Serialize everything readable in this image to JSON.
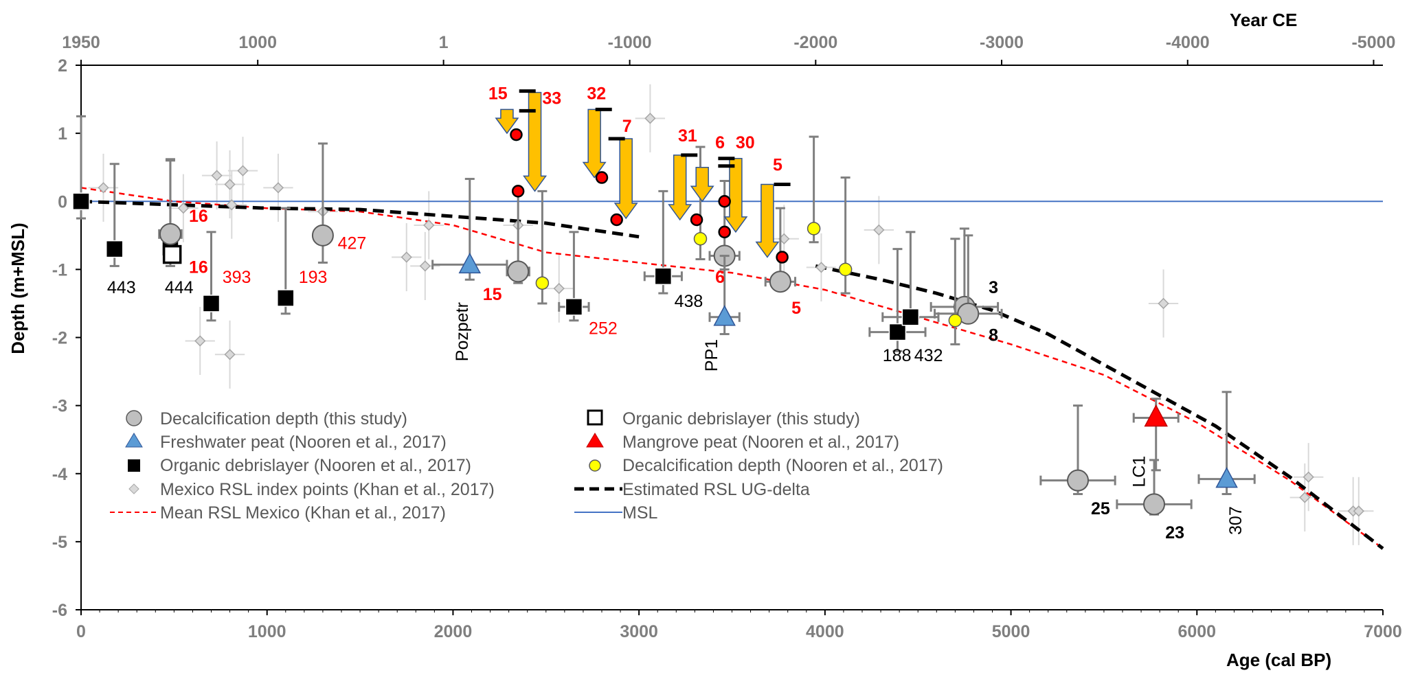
{
  "chart_data": {
    "type": "scatter",
    "xlabel": "Age (cal BP)",
    "ylabel": "Depth (m+MSL)",
    "x2label": "Year CE",
    "xlim": [
      0,
      7000
    ],
    "ylim": [
      -6,
      2
    ],
    "xticks": [
      "0",
      "1000",
      "2000",
      "3000",
      "4000",
      "5000",
      "6000",
      "7000"
    ],
    "yticks": [
      "2",
      "1",
      "0",
      "-1",
      "-2",
      "-3",
      "-4",
      "-5",
      "-6"
    ],
    "top_ticks": [
      "1950",
      "1000",
      "1",
      "-1000",
      "-2000",
      "-3000",
      "-4000",
      "-5000"
    ],
    "colors": {
      "grey_marker": "#bfbfbf",
      "blue": "#5b9bd5",
      "red": "#ff0000",
      "yellow": "#ffff00",
      "arrow": "#ffc000",
      "msl": "#4472c4",
      "rsl_mean": "#ff0000",
      "estimated": "#000000",
      "index": "#a6a6a6",
      "errbar": "#7f7f7f"
    },
    "legend": [
      {
        "marker": "grey-circle",
        "text": "Decalcification depth (this study)"
      },
      {
        "marker": "open-square",
        "text": "Organic debrislayer (this study)"
      },
      {
        "marker": "blue-triangle",
        "text": "Freshwater peat (Nooren et al., 2017)"
      },
      {
        "marker": "red-triangle",
        "text": "Mangrove peat (Nooren et al., 2017)"
      },
      {
        "marker": "black-square",
        "text": "Organic debrislayer (Nooren et al., 2017)"
      },
      {
        "marker": "yellow-circle",
        "text": "Decalcification depth (Nooren et al., 2017)"
      },
      {
        "marker": "diamond",
        "text": "Mexico RSL index points (Khan et al., 2017)"
      },
      {
        "marker": "black-dash",
        "text": "Estimated RSL UG-delta"
      },
      {
        "marker": "red-dash",
        "text": "Mean RSL Mexico (Khan et al., 2017)"
      },
      {
        "marker": "blue-line",
        "text": "MSL"
      }
    ],
    "series": {
      "msl": {
        "name": "MSL",
        "y": 0
      },
      "mean_rsl_mexico": [
        [
          0,
          0.2
        ],
        [
          500,
          0
        ],
        [
          1000,
          -0.1
        ],
        [
          1500,
          -0.15
        ],
        [
          2000,
          -0.35
        ],
        [
          2500,
          -0.75
        ],
        [
          3000,
          -0.9
        ],
        [
          3500,
          -1.05
        ],
        [
          4000,
          -1.3
        ],
        [
          4500,
          -1.7
        ],
        [
          5000,
          -2.1
        ],
        [
          5500,
          -2.55
        ],
        [
          6000,
          -3.25
        ],
        [
          6500,
          -4.1
        ],
        [
          7000,
          -5.1
        ]
      ],
      "estimated_rsl": {
        "segment1": [
          [
            0,
            0
          ],
          [
            500,
            -0.05
          ],
          [
            1000,
            -0.1
          ],
          [
            1500,
            -0.12
          ],
          [
            2000,
            -0.22
          ],
          [
            2500,
            -0.32
          ],
          [
            3000,
            -0.52
          ]
        ],
        "segment2": [
          [
            3950,
            -0.95
          ],
          [
            4300,
            -1.15
          ],
          [
            4600,
            -1.35
          ],
          [
            4900,
            -1.6
          ],
          [
            5200,
            -1.95
          ],
          [
            5500,
            -2.4
          ],
          [
            5800,
            -2.85
          ],
          [
            6100,
            -3.3
          ],
          [
            6500,
            -4.05
          ],
          [
            7000,
            -5.1
          ]
        ]
      },
      "decalc_this_study": [
        {
          "x": 480,
          "y": -0.48,
          "xerr": 60,
          "ylo": -0.6,
          "yhi": 0.62
        },
        {
          "x": 1300,
          "y": -0.5,
          "xerr": 0,
          "ylo": -0.9,
          "yhi": 0.85
        },
        {
          "x": 2350,
          "y": -1.03,
          "xerr": 60,
          "ylo": -1.2,
          "yhi": 0.15
        },
        {
          "x": 3460,
          "y": -0.8,
          "xerr": 80,
          "ylo": -1.0,
          "yhi": 0.3
        },
        {
          "x": 3760,
          "y": -1.18,
          "xerr": 80,
          "ylo": -1.3,
          "yhi": -0.1
        },
        {
          "x": 4750,
          "y": -1.55,
          "xerr": 180,
          "ylo": -1.6,
          "yhi": -0.4
        },
        {
          "x": 4770,
          "y": -1.65,
          "xerr": 180,
          "ylo": -1.7,
          "yhi": -0.5
        },
        {
          "x": 5360,
          "y": -4.1,
          "xerr": 200,
          "ylo": -4.3,
          "yhi": -3.0
        },
        {
          "x": 5770,
          "y": -4.45,
          "xerr": 200,
          "ylo": -4.6,
          "yhi": -3.8
        }
      ],
      "organic_this_study": [
        {
          "x": 490,
          "y": -0.78,
          "yhi": -0.6
        }
      ],
      "freshwater_peat": [
        {
          "x": 2090,
          "y": -0.93,
          "xerr": 200,
          "ylo": -1.15,
          "yhi": 0.33
        },
        {
          "x": 3460,
          "y": -1.7,
          "xerr": 80,
          "ylo": -1.95,
          "yhi": -0.8
        },
        {
          "x": 6160,
          "y": -4.08,
          "xerr": 150,
          "ylo": -4.3,
          "yhi": -2.8
        }
      ],
      "mangrove_peat": [
        {
          "x": 5780,
          "y": -3.18,
          "xerr": 120,
          "ylo": -3.95,
          "yhi": -2.9
        }
      ],
      "organic_nooren": [
        {
          "x": 0,
          "y": 0,
          "ylo": -0.25,
          "yhi": 1.25
        },
        {
          "x": 180,
          "y": -0.7,
          "ylo": -0.95,
          "yhi": 0.55
        },
        {
          "x": 480,
          "y": -0.68,
          "ylo": -0.95,
          "yhi": 0.6
        },
        {
          "x": 700,
          "y": -1.5,
          "xerr": 40,
          "ylo": -1.75,
          "yhi": -0.45
        },
        {
          "x": 1100,
          "y": -1.42,
          "ylo": -1.65,
          "yhi": -0.1
        },
        {
          "x": 2650,
          "y": -1.55,
          "xerr": 80,
          "ylo": -1.75,
          "yhi": -0.45
        },
        {
          "x": 3130,
          "y": -1.1,
          "xerr": 100,
          "ylo": -1.35,
          "yhi": 0.15
        },
        {
          "x": 4390,
          "y": -1.92,
          "xerr": 150,
          "ylo": -2.2,
          "yhi": -0.7
        },
        {
          "x": 4460,
          "y": -1.7,
          "xerr": 150,
          "ylo": -1.8,
          "yhi": -0.45
        }
      ],
      "decalc_nooren": [
        {
          "x": 2480,
          "y": -1.2,
          "ylo": -1.5,
          "yhi": 0.15
        },
        {
          "x": 3330,
          "y": -0.55,
          "ylo": -0.85,
          "yhi": 0.8
        },
        {
          "x": 3940,
          "y": -0.4,
          "ylo": -0.6,
          "yhi": 0.95
        },
        {
          "x": 4110,
          "y": -1.0,
          "ylo": -1.35,
          "yhi": 0.35
        },
        {
          "x": 4700,
          "y": -1.75,
          "ylo": -2.1,
          "yhi": -0.55
        }
      ],
      "index_points": [
        {
          "x": 120,
          "y": 0.2
        },
        {
          "x": 550,
          "y": -0.1
        },
        {
          "x": 730,
          "y": 0.38
        },
        {
          "x": 800,
          "y": 0.25
        },
        {
          "x": 870,
          "y": 0.45
        },
        {
          "x": 810,
          "y": -0.05
        },
        {
          "x": 1060,
          "y": 0.2
        },
        {
          "x": 640,
          "y": -2.05
        },
        {
          "x": 800,
          "y": -2.25
        },
        {
          "x": 1300,
          "y": -0.15
        },
        {
          "x": 1850,
          "y": -0.95
        },
        {
          "x": 1750,
          "y": -0.82
        },
        {
          "x": 1870,
          "y": -0.35
        },
        {
          "x": 2350,
          "y": -0.35
        },
        {
          "x": 2570,
          "y": -1.28
        },
        {
          "x": 3060,
          "y": 1.22
        },
        {
          "x": 3780,
          "y": -0.55
        },
        {
          "x": 3980,
          "y": -0.97
        },
        {
          "x": 4290,
          "y": -0.42
        },
        {
          "x": 5820,
          "y": -1.5
        },
        {
          "x": 6600,
          "y": -4.05
        },
        {
          "x": 6580,
          "y": -4.35
        },
        {
          "x": 6840,
          "y": -4.55
        },
        {
          "x": 6870,
          "y": -4.55
        }
      ],
      "red_dots": [
        {
          "x": 2340,
          "y": 0.98
        },
        {
          "x": 2350,
          "y": 0.15
        },
        {
          "x": 2800,
          "y": 0.35
        },
        {
          "x": 2880,
          "y": -0.27
        },
        {
          "x": 3310,
          "y": -0.27
        },
        {
          "x": 3460,
          "y": 0.0
        },
        {
          "x": 3460,
          "y": -0.45
        },
        {
          "x": 3770,
          "y": -0.82
        }
      ],
      "arrows": [
        {
          "x": 2290,
          "y_from": 1.35,
          "y_to": 1.0
        },
        {
          "x": 2440,
          "y_from": 1.6,
          "y_to": 0.15
        },
        {
          "x": 2760,
          "y_from": 1.35,
          "y_to": 0.35
        },
        {
          "x": 2930,
          "y_from": 0.92,
          "y_to": -0.25
        },
        {
          "x": 3220,
          "y_from": 0.68,
          "y_to": -0.27
        },
        {
          "x": 3340,
          "y_from": 0.5,
          "y_to": 0.0
        },
        {
          "x": 3520,
          "y_from": 0.63,
          "y_to": -0.45
        },
        {
          "x": 3690,
          "y_from": 0.25,
          "y_to": -0.82
        }
      ],
      "bars": [
        {
          "x": 2400,
          "y": 1.62
        },
        {
          "x": 2400,
          "y": 1.33
        },
        {
          "x": 2810,
          "y": 1.35
        },
        {
          "x": 2880,
          "y": 0.92
        },
        {
          "x": 3270,
          "y": 0.68
        },
        {
          "x": 3470,
          "y": 0.63
        },
        {
          "x": 3470,
          "y": 0.52
        },
        {
          "x": 3770,
          "y": 0.25
        }
      ]
    },
    "labels": [
      {
        "text": "443",
        "x": 140,
        "y": -1.35,
        "style": "blk"
      },
      {
        "text": "444",
        "x": 450,
        "y": -1.35,
        "style": "blk"
      },
      {
        "text": "16",
        "x": 580,
        "y": -0.3,
        "style": "redb"
      },
      {
        "text": "16",
        "x": 580,
        "y": -1.05,
        "style": "redb"
      },
      {
        "text": "393",
        "x": 760,
        "y": -1.2,
        "style": "red"
      },
      {
        "text": "193",
        "x": 1170,
        "y": -1.2,
        "style": "red"
      },
      {
        "text": "427",
        "x": 1380,
        "y": -0.7,
        "style": "red"
      },
      {
        "text": "15",
        "x": 2160,
        "y": -1.45,
        "style": "redb"
      },
      {
        "text": "252",
        "x": 2730,
        "y": -1.95,
        "style": "red"
      },
      {
        "text": "438",
        "x": 3190,
        "y": -1.55,
        "style": "blk"
      },
      {
        "text": "6",
        "x": 3410,
        "y": -1.2,
        "style": "redb"
      },
      {
        "text": "5",
        "x": 3820,
        "y": -1.65,
        "style": "redb"
      },
      {
        "text": "188",
        "x": 4310,
        "y": -2.35,
        "style": "blk"
      },
      {
        "text": "432",
        "x": 4480,
        "y": -2.35,
        "style": "blk"
      },
      {
        "text": "3",
        "x": 4880,
        "y": -1.35,
        "style": "blkb"
      },
      {
        "text": "8",
        "x": 4880,
        "y": -2.05,
        "style": "blkb"
      },
      {
        "text": "25",
        "x": 5430,
        "y": -4.6,
        "style": "blkb"
      },
      {
        "text": "23",
        "x": 5830,
        "y": -4.95,
        "style": "blkb"
      },
      {
        "text": "15",
        "x": 2190,
        "y": 1.5,
        "style": "redb"
      },
      {
        "text": "33",
        "x": 2480,
        "y": 1.43,
        "style": "redb"
      },
      {
        "text": "32",
        "x": 2720,
        "y": 1.5,
        "style": "redb"
      },
      {
        "text": "7",
        "x": 2910,
        "y": 1.02,
        "style": "redb"
      },
      {
        "text": "31",
        "x": 3210,
        "y": 0.88,
        "style": "redb"
      },
      {
        "text": "6",
        "x": 3410,
        "y": 0.78,
        "style": "redb"
      },
      {
        "text": "30",
        "x": 3520,
        "y": 0.78,
        "style": "redb"
      },
      {
        "text": "5",
        "x": 3720,
        "y": 0.45,
        "style": "redb"
      }
    ],
    "vertical_labels": [
      {
        "text": "Pozpetr",
        "x": 2080,
        "y": -2.35
      },
      {
        "text": "PP1",
        "x": 3420,
        "y": -2.5
      },
      {
        "text": "LC1",
        "x": 5720,
        "y": -4.2
      },
      {
        "text": "307",
        "x": 6240,
        "y": -4.9
      }
    ]
  }
}
